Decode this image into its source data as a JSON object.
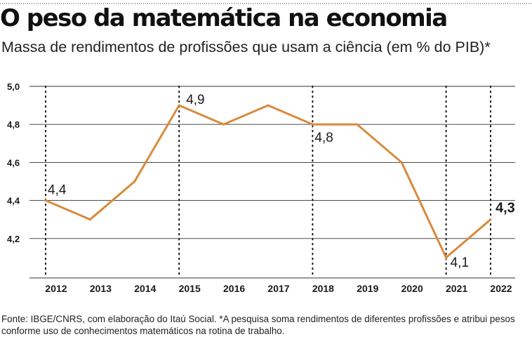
{
  "header": {
    "title": "O peso da matemática na economia",
    "subtitle": "Massa de rendimentos de profissões que usam a ciência (em % do PIB)*"
  },
  "footer": {
    "source": "Fonte: IBGE/CNRS, com elaboração do Itaú Social. *A pesquisa soma rendimentos de diferentes profissões e atribui pesos conforme uso de conhecimentos matemáticos na rotina de trabalho."
  },
  "colors": {
    "line": "#d98a3d",
    "grid": "#333333",
    "text": "#1a1a1a"
  },
  "chart_data": {
    "type": "line",
    "title": "O peso da matemática na economia",
    "subtitle": "Massa de rendimentos de profissões que usam a ciência (em % do PIB)*",
    "xlabel": "",
    "ylabel": "",
    "categories": [
      "2012",
      "2013",
      "2014",
      "2015",
      "2016",
      "2017",
      "2018",
      "2019",
      "2020",
      "2021",
      "2022"
    ],
    "values": [
      4.4,
      4.3,
      4.5,
      4.9,
      4.8,
      4.9,
      4.8,
      4.8,
      4.6,
      4.1,
      4.3
    ],
    "ylim": [
      4.0,
      5.0
    ],
    "yticks": [
      4.2,
      4.4,
      4.6,
      4.8,
      5.0
    ],
    "ytick_labels": [
      "4,2",
      "4,4",
      "4,6",
      "4,8",
      "5,0"
    ],
    "grid": true,
    "highlight_years": [
      "2012",
      "2015",
      "2018",
      "2021",
      "2022"
    ],
    "annotations": [
      {
        "category": "2012",
        "label": "4,4",
        "bold": false
      },
      {
        "category": "2015",
        "label": "4,9",
        "bold": false
      },
      {
        "category": "2018",
        "label": "4,8",
        "bold": false
      },
      {
        "category": "2021",
        "label": "4,1",
        "bold": false
      },
      {
        "category": "2022",
        "label": "4,3",
        "bold": true
      }
    ]
  }
}
